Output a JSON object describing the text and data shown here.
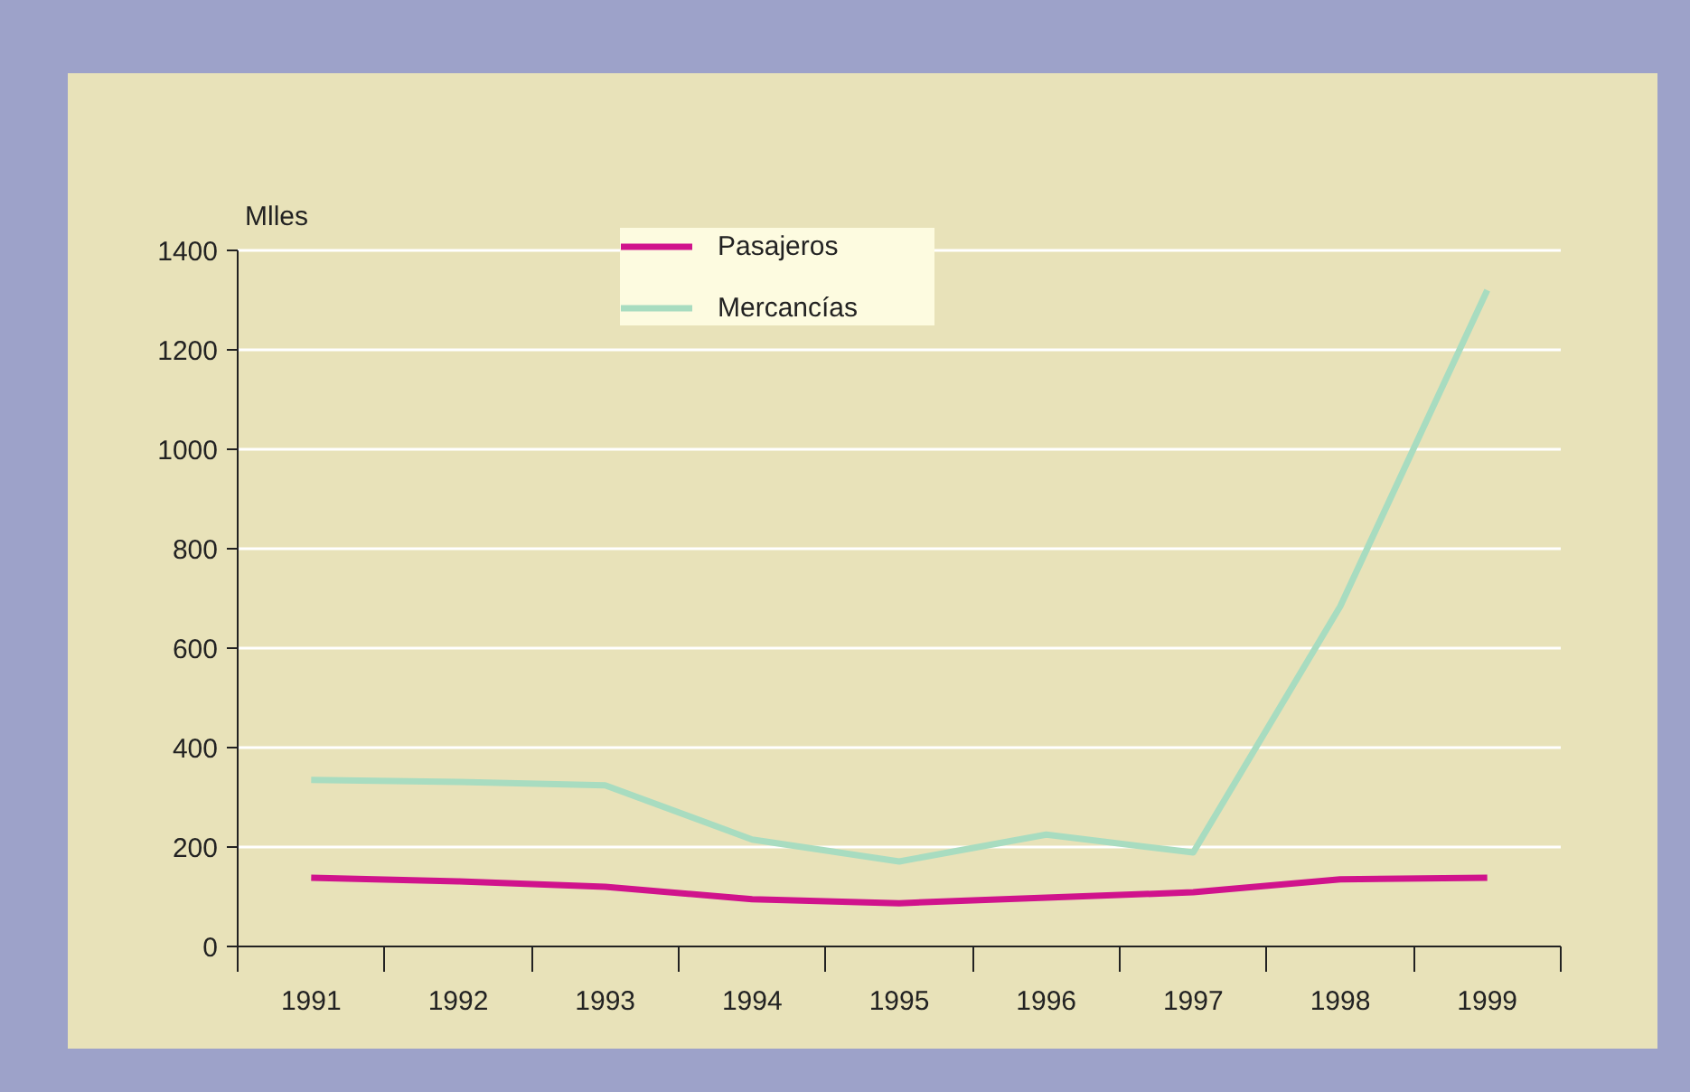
{
  "chart_data": {
    "type": "line",
    "ylabel": "Mlles",
    "categories": [
      "1991",
      "1992",
      "1993",
      "1994",
      "1995",
      "1996",
      "1997",
      "1998",
      "1999"
    ],
    "series": [
      {
        "name": "Pasajeros",
        "color": "#d0138c",
        "values": [
          138,
          131,
          120,
          95,
          87,
          98,
          109,
          135,
          138
        ]
      },
      {
        "name": "Mercancías",
        "color": "#a8dcc0",
        "values": [
          335,
          331,
          324,
          215,
          171,
          225,
          189,
          684,
          1320
        ]
      }
    ],
    "ylim": [
      0,
      1400
    ],
    "yticks": [
      0,
      200,
      400,
      600,
      800,
      1000,
      1200,
      1400
    ],
    "grid": "y",
    "legend": "top",
    "marker": "none",
    "line_style": "solid"
  }
}
